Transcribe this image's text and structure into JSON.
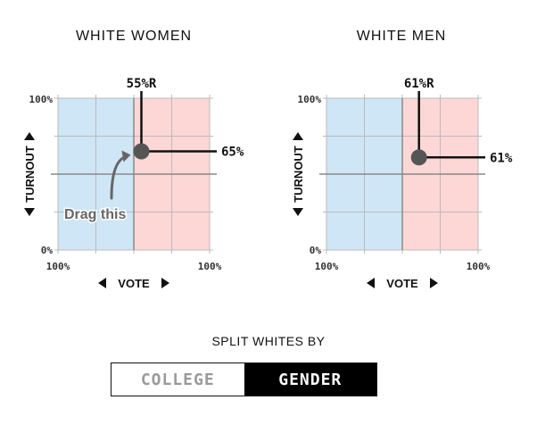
{
  "colors": {
    "dem_fill": "#cfe6f6",
    "rep_fill": "#fcd7d5",
    "grid": "#bbbbbb",
    "axis": "#888888",
    "line": "#111111",
    "handle": "#555555",
    "annotation": "#666666"
  },
  "panels": [
    {
      "title": "WHITE WOMEN",
      "vote_label": "55%R",
      "turnout_label": "65%",
      "vote_r_share": 0.55,
      "turnout": 0.65,
      "y_top": "100%",
      "y_bottom": "0%",
      "x_left": "100%",
      "x_right": "100%",
      "x_axis_label": "VOTE",
      "y_axis_label": "TURNOUT",
      "annotation": "Drag this"
    },
    {
      "title": "WHITE MEN",
      "vote_label": "61%R",
      "turnout_label": "61%",
      "vote_r_share": 0.61,
      "turnout": 0.61,
      "y_top": "100%",
      "y_bottom": "0%",
      "x_left": "100%",
      "x_right": "100%",
      "x_axis_label": "VOTE",
      "y_axis_label": "TURNOUT",
      "annotation": ""
    }
  ],
  "split": {
    "label": "SPLIT WHITES BY",
    "options": [
      "COLLEGE",
      "GENDER"
    ],
    "selected": "GENDER"
  }
}
